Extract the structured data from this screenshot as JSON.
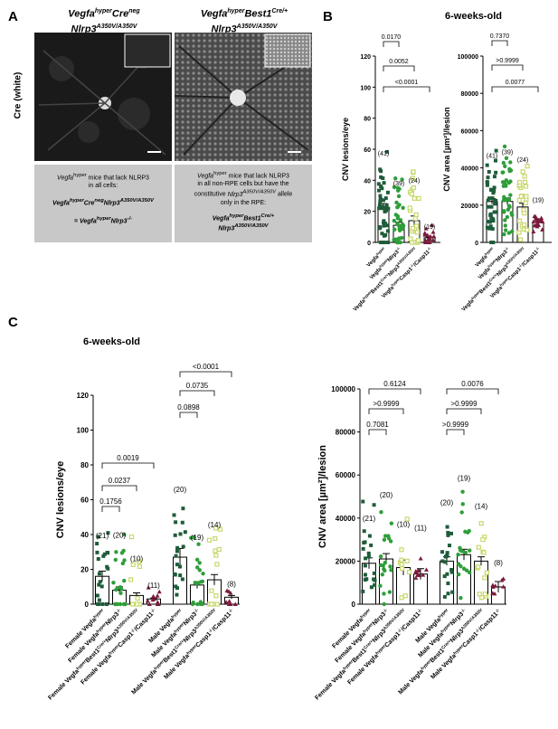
{
  "panels": {
    "a_letter": "A",
    "b_letter": "B",
    "c_letter": "C"
  },
  "panel_a": {
    "side_label": "Cre (white)",
    "left_title_1": "Vegfa",
    "left_title_1_sup": "hyper",
    "left_title_1_b": "Cre",
    "left_title_1_b_sup": "neg",
    "left_title_2": "Nlrp3",
    "left_title_2_sup": "A350V/A350V",
    "right_title_1": "Vegfa",
    "right_title_1_sup": "hyper",
    "right_title_1_b": "Best1",
    "right_title_1_b_sup": "Cre/+",
    "right_title_2": "Nlrp3",
    "right_title_2_sup": "A350V/A350V",
    "left_caption_lines": [
      "Vegfa^hyper mice that lack NLRP3",
      "in all cells:"
    ],
    "left_caption_bold_1": "VegfahyperCrenegNlrp3A350V/A350V",
    "left_caption_bold_2": "= VegfahyperNlrp3-/-",
    "right_caption_lines": [
      "Vegfa^hyper mice that lack NLRP3",
      "in all non-RPE cells but have the",
      "constitutive Nlrp3A350V/A350V allele",
      "only in the RPE:"
    ],
    "right_caption_bold_1": "VegfahyperBest1Cre/+",
    "right_caption_bold_2": "Nlrp3A350V/A350V"
  },
  "panel_b_subtitle": "6-weeks-old",
  "panel_c_subtitle": "6-weeks-old",
  "chart_data": [
    {
      "id": "B-left",
      "type": "bar",
      "ylabel": "CNV lesions/eye",
      "ylim": [
        0,
        120
      ],
      "yticks": [
        0,
        20,
        40,
        60,
        80,
        100,
        120
      ],
      "categories": [
        "Vegfa^hyper",
        "Vegfa^hyper Nlrp3^-/-",
        "Vegfa^hyper Best1^Cre/+ Nlrp3^A350V/A350V",
        "Vegfa^hyper Casp1^-/- /Casp11^-/-"
      ],
      "values": [
        22,
        11,
        14,
        3
      ],
      "errors": [
        3,
        2,
        3,
        0.5
      ],
      "n_labels": [
        "(41)",
        "(39)",
        "(24)",
        "(19)"
      ],
      "comparisons": [
        {
          "from": 0,
          "to": 1,
          "p": "0.0170"
        },
        {
          "from": 0,
          "to": 2,
          "p": "0.0052"
        },
        {
          "from": 0,
          "to": 3,
          "p": "<0.0001"
        }
      ]
    },
    {
      "id": "B-right",
      "type": "bar",
      "ylabel": "CNV area [µm²]/lesion",
      "ylim": [
        0,
        100000
      ],
      "yticks": [
        0,
        20000,
        40000,
        60000,
        80000,
        100000
      ],
      "categories": [
        "Vegfa^hyper",
        "Vegfa^hyper Nlrp3^-/-",
        "Vegfa^hyper Best1^Cre/+ Nlrp3^A350V/A350V",
        "Vegfa^hyper Casp1^-/- /Casp11^-/-"
      ],
      "values": [
        22000,
        22000,
        19000,
        11000
      ],
      "errors": [
        1500,
        1800,
        2000,
        1600
      ],
      "n_labels": [
        "(41)",
        "(39)",
        "(24)",
        "(19)"
      ],
      "comparisons": [
        {
          "from": 0,
          "to": 1,
          "p": "0.7370"
        },
        {
          "from": 0,
          "to": 2,
          "p": ">0.9999"
        },
        {
          "from": 0,
          "to": 3,
          "p": "0.0077"
        }
      ]
    },
    {
      "id": "C-left",
      "type": "bar",
      "ylabel": "CNV lesions/eye",
      "ylim": [
        0,
        120
      ],
      "yticks": [
        0,
        20,
        40,
        60,
        80,
        100,
        120
      ],
      "categories": [
        "Female Vegfa^hyper",
        "Female Vegfa^hyper Nlrp3^-/-",
        "Female Vegfa^hyper Best1^Cre/+ Nlrp3^A350V/A350V",
        "Female Vegfa^hyper Casp1^-/- /Casp11^-/-",
        "Male Vegfa^hyper",
        "Male Vegfa^hyper Nlrp3^-/-",
        "Male Vegfa^hyper Best1^Cre/+ Nlrp3^A350V/A350V",
        "Male Vegfa^hyper Casp1^-/- /Casp11^-/-"
      ],
      "values": [
        16,
        8,
        5,
        3,
        27,
        11,
        14,
        4
      ],
      "errors": [
        3,
        2,
        1.5,
        0.5,
        5,
        2,
        3,
        1
      ],
      "n_labels": [
        "(21)",
        "(20)",
        "(10)",
        "(11)",
        "(20)",
        "(19)",
        "(14)",
        "(8)"
      ],
      "comparisons": [
        {
          "from": 0,
          "to": 1,
          "p": "0.1756"
        },
        {
          "from": 0,
          "to": 2,
          "p": "0.0237"
        },
        {
          "from": 0,
          "to": 3,
          "p": "0.0019"
        },
        {
          "from": 4,
          "to": 5,
          "p": "0.0898"
        },
        {
          "from": 4,
          "to": 6,
          "p": "0.0735"
        },
        {
          "from": 4,
          "to": 7,
          "p": "<0.0001"
        }
      ]
    },
    {
      "id": "C-right",
      "type": "bar",
      "ylabel": "CNV area [µm²]/lesion",
      "ylim": [
        0,
        100000
      ],
      "yticks": [
        0,
        20000,
        40000,
        60000,
        80000,
        100000
      ],
      "categories": [
        "Female Vegfa^hyper",
        "Female Vegfa^hyper Nlrp3^-/-",
        "Female Vegfa^hyper Best1^Cre/+ Nlrp3^A350V/A350V",
        "Female Vegfa^hyper Casp1^-/- /Casp11^-/-",
        "Male Vegfa^hyper",
        "Male Vegfa^hyper Nlrp3^-/-",
        "Male Vegfa^hyper Best1^Cre/+ Nlrp3^A350V/A350V",
        "Male Vegfa^hyper Casp1^-/- /Casp11^-/-"
      ],
      "values": [
        19000,
        21000,
        17000,
        14000,
        20000,
        23000,
        20000,
        8000
      ],
      "errors": [
        2500,
        2500,
        3500,
        2500,
        2000,
        2500,
        2000,
        2500
      ],
      "n_labels": [
        "(21)",
        "(20)",
        "(10)",
        "(11)",
        "(20)",
        "(19)",
        "(14)",
        "(8)"
      ],
      "comparisons": [
        {
          "from": 0,
          "to": 1,
          "p": "0.7081"
        },
        {
          "from": 0,
          "to": 2,
          "p": ">0.9999"
        },
        {
          "from": 0,
          "to": 3,
          "p": "0.6124"
        },
        {
          "from": 4,
          "to": 5,
          "p": ">0.9999"
        },
        {
          "from": 4,
          "to": 6,
          "p": ">0.9999"
        },
        {
          "from": 4,
          "to": 7,
          "p": "0.0076"
        }
      ]
    }
  ],
  "x_labels_b": [
    {
      "parts": [
        [
          "Vegfa",
          ""
        ],
        [
          "hyper",
          "sup"
        ]
      ]
    },
    {
      "parts": [
        [
          "Vegfa",
          ""
        ],
        [
          "hyper",
          "sup"
        ],
        [
          "Nlrp3",
          ""
        ],
        [
          "-/-",
          "sup"
        ]
      ]
    },
    {
      "parts": [
        [
          "Vegfa",
          ""
        ],
        [
          "hyper",
          "sup"
        ],
        [
          "Best1",
          ""
        ],
        [
          "Cre/+",
          "sup"
        ],
        [
          "Nlrp3",
          ""
        ],
        [
          "A350V/A350V",
          "sup"
        ]
      ]
    },
    {
      "parts": [
        [
          "Vegfa",
          ""
        ],
        [
          "hyper",
          "sup"
        ],
        [
          "Casp1",
          ""
        ],
        [
          "-/-",
          "sup"
        ],
        [
          "/Casp11",
          ""
        ],
        [
          "-/-",
          "sup"
        ]
      ]
    }
  ],
  "x_labels_c": [
    {
      "parts": [
        [
          "Female Vegfa",
          ""
        ],
        [
          "hyper",
          "sup"
        ]
      ]
    },
    {
      "parts": [
        [
          "Female Vegfa",
          ""
        ],
        [
          "hyper",
          "sup"
        ],
        [
          "Nlrp3",
          ""
        ],
        [
          "-/-",
          "sup"
        ]
      ]
    },
    {
      "parts": [
        [
          "Female Vegfa",
          ""
        ],
        [
          "hyper",
          "sup"
        ],
        [
          "Best1",
          ""
        ],
        [
          "Cre/+",
          "sup"
        ],
        [
          "Nlrp3",
          ""
        ],
        [
          "A350V/A350V",
          "sup"
        ]
      ]
    },
    {
      "parts": [
        [
          "Female Vegfa",
          ""
        ],
        [
          "hyper",
          "sup"
        ],
        [
          "Casp1",
          ""
        ],
        [
          "-/-",
          "sup"
        ],
        [
          "/Casp11",
          ""
        ],
        [
          "-/-",
          "sup"
        ]
      ]
    },
    {
      "parts": [
        [
          "Male Vegfa",
          ""
        ],
        [
          "hyper",
          "sup"
        ]
      ]
    },
    {
      "parts": [
        [
          "Male Vegfa",
          ""
        ],
        [
          "hyper",
          "sup"
        ],
        [
          "Nlrp3",
          ""
        ],
        [
          "-/-",
          "sup"
        ]
      ]
    },
    {
      "parts": [
        [
          "Male Vegfa",
          ""
        ],
        [
          "hyper",
          "sup"
        ],
        [
          "Best1",
          ""
        ],
        [
          "Cre/+",
          "sup"
        ],
        [
          "Nlrp3",
          ""
        ],
        [
          "A350V/A350V",
          "sup"
        ]
      ]
    },
    {
      "parts": [
        [
          "Male Vegfa",
          ""
        ],
        [
          "hyper",
          "sup"
        ],
        [
          "Casp1",
          ""
        ],
        [
          "-/-",
          "sup"
        ],
        [
          "/Casp11",
          ""
        ],
        [
          "-/-",
          "sup"
        ]
      ]
    }
  ],
  "colors": {
    "g1": "#1f5c3a",
    "g2": "#2e9e3a",
    "g3": "#c8d86a",
    "g4": "#7a1a3a"
  }
}
